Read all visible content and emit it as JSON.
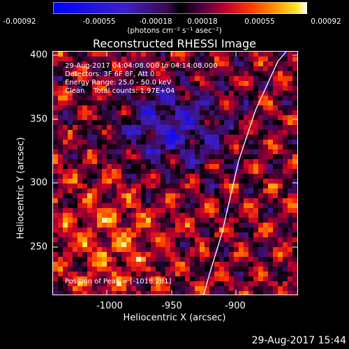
{
  "colorbar": {
    "ticks": [
      "-0.00092",
      "-0.00055",
      "-0.00018",
      "0.00018",
      "0.00055",
      "0.00092"
    ],
    "units": "(photons cm⁻² s⁻¹ asec⁻²)"
  },
  "title": "Reconstructed RHESSI Image",
  "annotations": {
    "time": "29-Aug-2017 04:04:08.000 to 04:14:08.000",
    "detectors": "Detectors: 3F 6F 8F, Att 0",
    "energy": "Energy Range: 25.0 - 50.0 keV",
    "clean": "Clean    Total counts: 1.97E+04",
    "peak": "Position of Peak = [-1018,281]"
  },
  "axes": {
    "xlabel": "Heliocentric X (arcsec)",
    "ylabel": "Heliocentric Y (arcsec)",
    "xticks": [
      "-1000",
      "-950",
      "-900"
    ],
    "yticks": [
      "400",
      "350",
      "300",
      "250"
    ],
    "xrange": [
      -1045,
      -855
    ],
    "yrange": [
      210,
      405
    ]
  },
  "date_stamp": "29-Aug-2017 15:44"
}
